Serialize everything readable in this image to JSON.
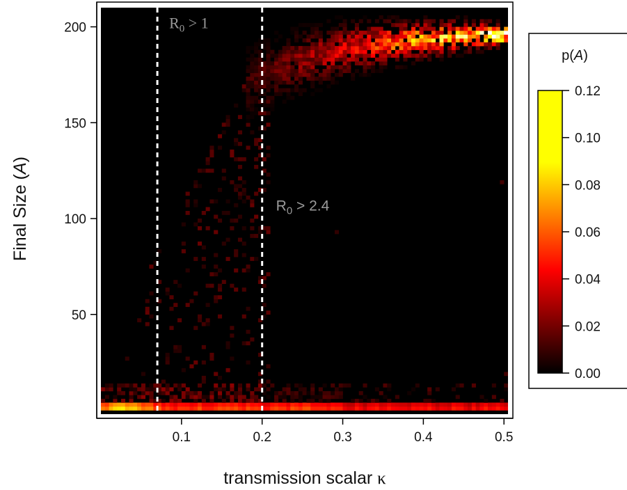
{
  "chart_data": {
    "type": "heatmap",
    "xlabel_main": "transmission scalar ",
    "xlabel_symbol": "κ",
    "ylabel_main": "Final Size (",
    "ylabel_symbol": "A",
    "ylabel_end": ")",
    "xlim": [
      0.0,
      0.505
    ],
    "ylim": [
      -2,
      210
    ],
    "xticks": [
      0.1,
      0.2,
      0.3,
      0.4,
      0.5
    ],
    "xtick_labels": [
      "0.1",
      "0.2",
      "0.3",
      "0.4",
      "0.5"
    ],
    "yticks": [
      50,
      100,
      150,
      200
    ],
    "ytick_labels": [
      "50",
      "100",
      "150",
      "200"
    ],
    "x_bin_width": 0.005,
    "y_bin_width": 2,
    "vlines": [
      {
        "x": 0.07,
        "label_main": "R",
        "label_sub": "0",
        "label_rest": "  > 1",
        "label_font": "serif",
        "label_at_y": 200
      },
      {
        "x": 0.2,
        "label_main": "R",
        "label_sub": "0",
        "label_rest": " > 2.4",
        "label_font": "sans",
        "label_at_y": 107
      }
    ],
    "regions": [
      {
        "desc": "no-outbreak band",
        "x_range": [
          0.0,
          0.505
        ],
        "y_range": [
          0,
          4
        ],
        "level_range": [
          0.04,
          0.09
        ]
      },
      {
        "desc": "secondary low band",
        "x_range": [
          0.0,
          0.3
        ],
        "y_range": [
          4,
          12
        ],
        "level_range": [
          0.005,
          0.03
        ]
      },
      {
        "desc": "major-outbreak plateau",
        "x_range": [
          0.2,
          0.505
        ],
        "y_range": [
          185,
          205
        ],
        "level_range": [
          0.02,
          0.12
        ]
      },
      {
        "desc": "transition scatter",
        "x_range": [
          0.03,
          0.2
        ],
        "y_range": [
          12,
          185
        ],
        "level_range": [
          0.0,
          0.025
        ]
      }
    ],
    "colorbar": {
      "title_main": "p(",
      "title_symbol": "A",
      "title_end": ")",
      "colormap": "hot",
      "range": [
        0.0,
        0.12
      ],
      "ticks": [
        "0.00",
        "0.02",
        "0.04",
        "0.06",
        "0.08",
        "0.10",
        "0.12"
      ]
    }
  }
}
